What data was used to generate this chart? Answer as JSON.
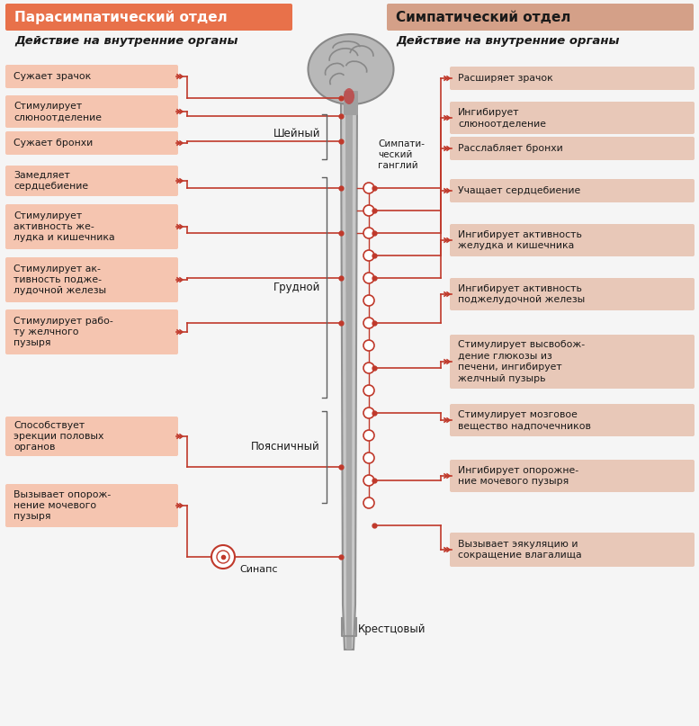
{
  "bg_color": "#f5f5f5",
  "left_header_color": "#e8714a",
  "right_header_color": "#d4a088",
  "box_left_color": "#f5c5b0",
  "box_right_color": "#e8c8b8",
  "line_color": "#c0392b",
  "text_color": "#1a1a1a",
  "left_header": "Парасимпатический отдел",
  "right_header": "Симпатический отдел",
  "subtitle": "Действие на внутренние органы",
  "left_items": [
    "Сужает зрачок",
    "Стимулирует\nслюноотделение",
    "Сужает бронхи",
    "Замедляет\nсердцебиение",
    "Стимулирует\nактивность же-\nлудка и кишечника",
    "Стимулирует ак-\nтивность поджe-\nлудочной железы",
    "Стимулирует рабо-\nту желчного\nпузыря",
    "Способствует\nэрекции половых\nорганов",
    "Вызывает опорож-\nнение мочевого\nпузыря"
  ],
  "right_items": [
    "Расширяет зрачок",
    "Ингибирует\nслюноотделение",
    "Расслабляет бронхи",
    "Учащает сердцебиение",
    "Ингибирует активность\nжелудка и кишечника",
    "Ингибирует активность\nподжелудочной железы",
    "Стимулирует высвобож-\nдение глюкозы из\nпечени, ингибирует\nжелчный пузырь",
    "Стимулирует мозговое\nвещество надпочечников",
    "Ингибирует опорожне-\nние мочевого пузыря",
    "Вызывает эякуляцию и\nсокращение влагалища"
  ],
  "ganglion_label": "Симпати-\nческий\nганглий",
  "synapse_label": "Синапс",
  "krests_label": "Крестцовый",
  "sheyny_label": "Шейный",
  "grudnoy_label": "Грудной",
  "poyasn_label": "Поясничный"
}
